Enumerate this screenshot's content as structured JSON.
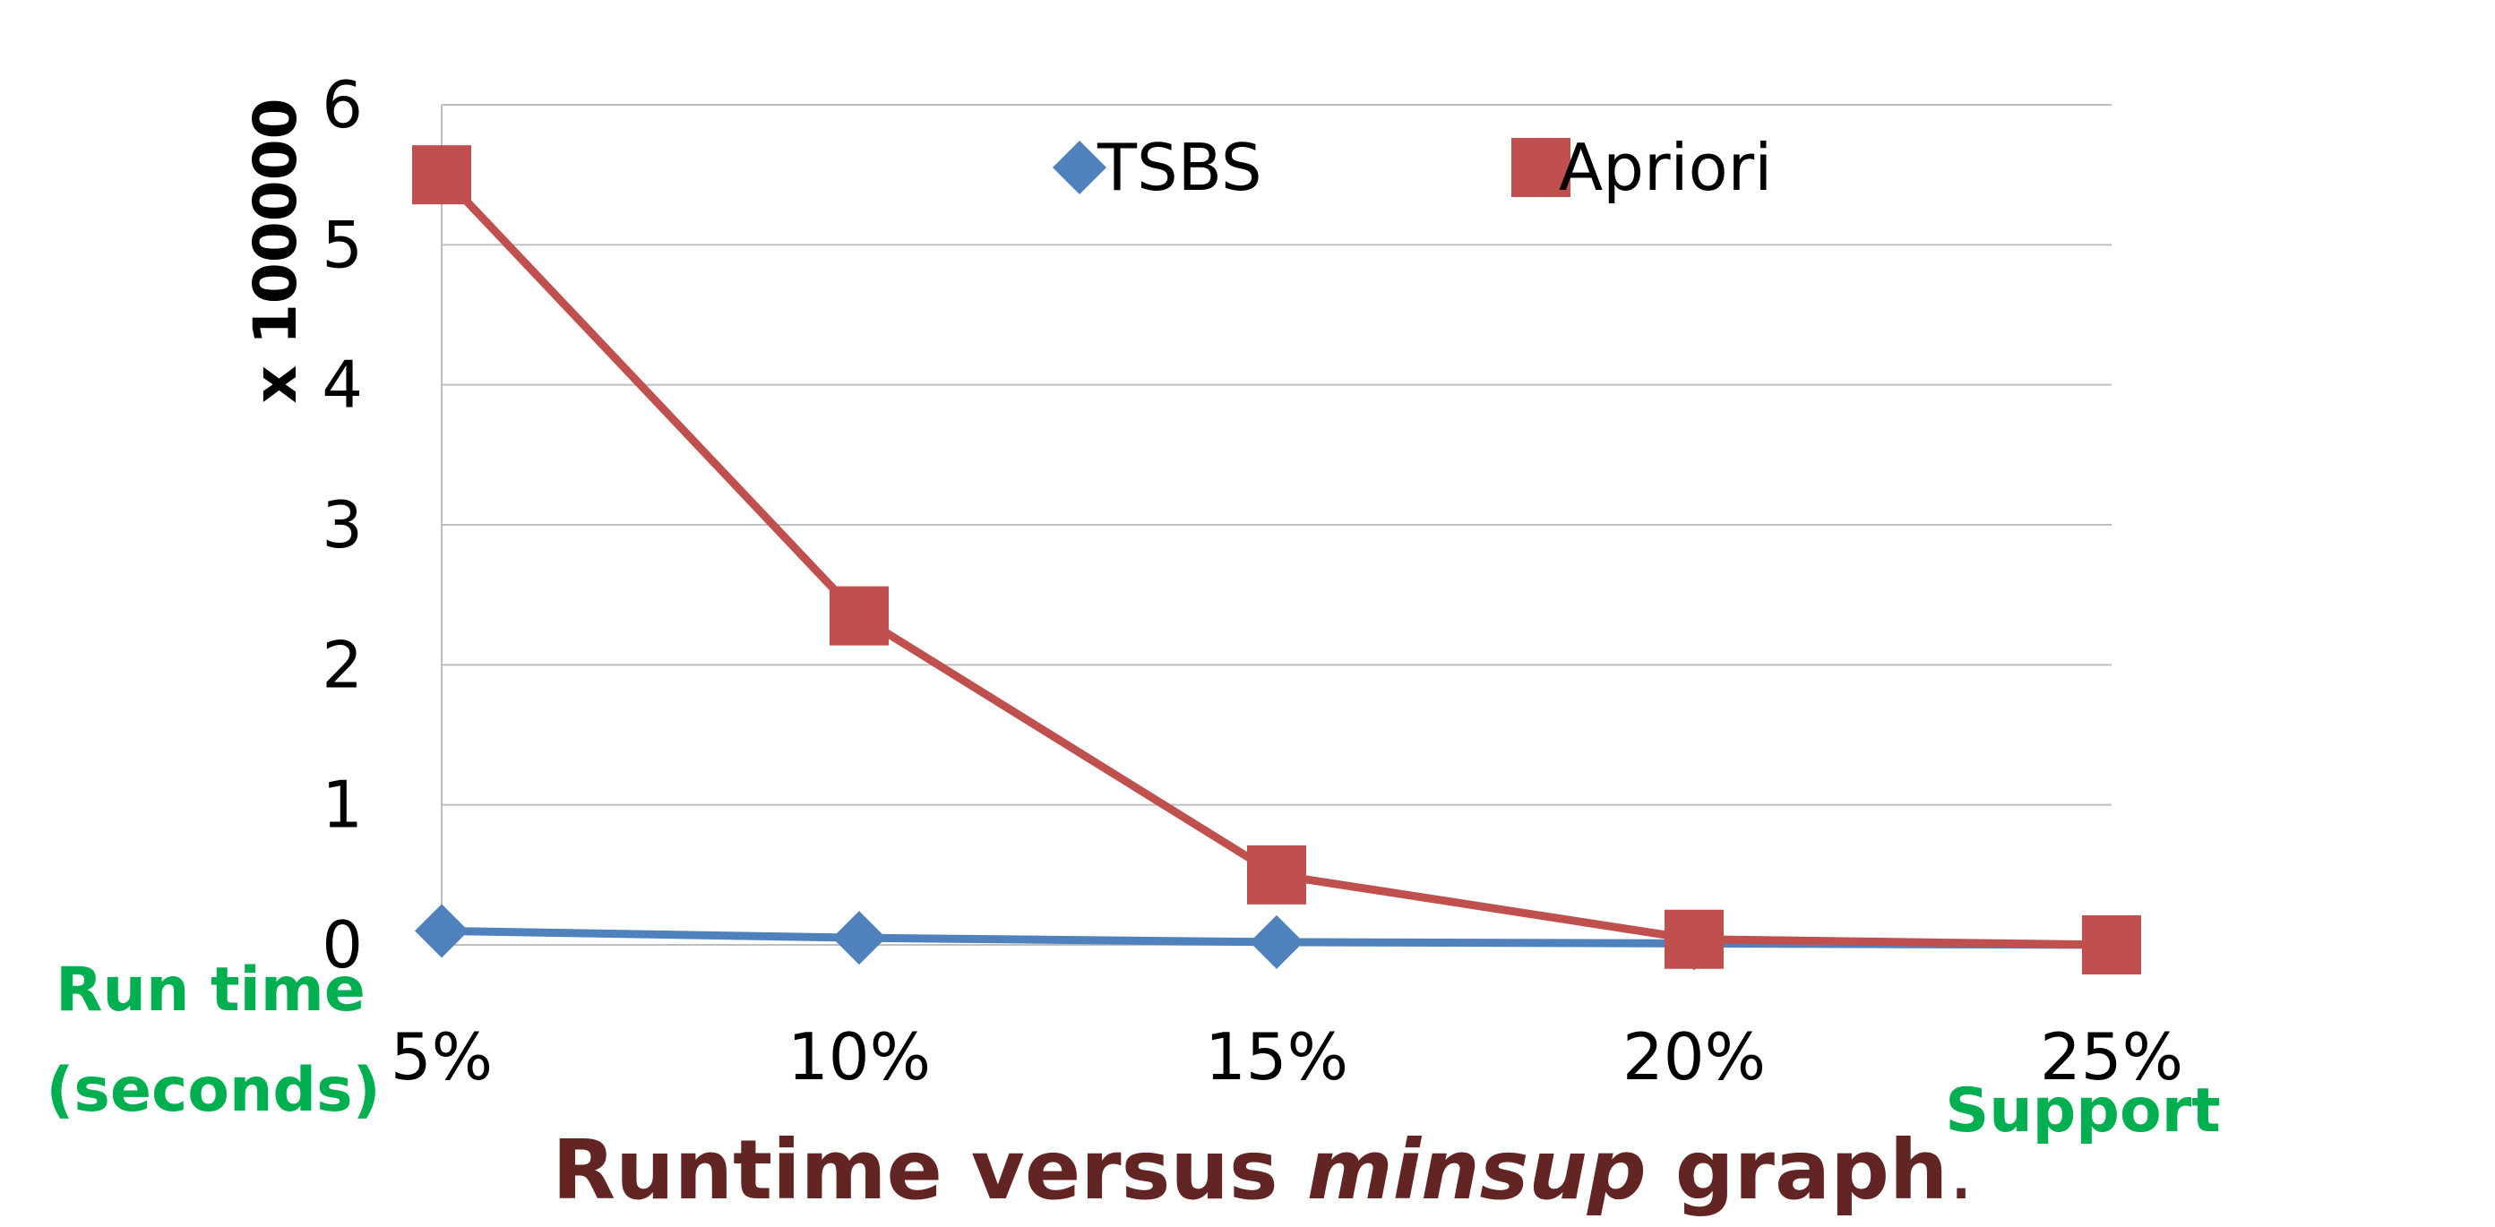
{
  "chart_data": {
    "type": "line",
    "categories": [
      "5%",
      "10%",
      "15%",
      "20%",
      "25%"
    ],
    "series": [
      {
        "name": "TSBS",
        "values": [
          0.1,
          0.05,
          0.02,
          0.01,
          0.0
        ],
        "color": "#4f81bd",
        "marker": "diamond"
      },
      {
        "name": "Apriori",
        "values": [
          5.5,
          2.35,
          0.5,
          0.04,
          0.0
        ],
        "color": "#c0504d",
        "marker": "square"
      }
    ],
    "ylim": [
      0,
      6
    ],
    "yticks": [
      "0",
      "1",
      "2",
      "3",
      "4",
      "5",
      "6"
    ],
    "y_multiplier_label": "x 100000",
    "ylabel": "Run time (seconds)",
    "ylabel_lines": [
      "Run time",
      "(seconds)"
    ],
    "xlabel": "Support",
    "grid": true,
    "legend_position": "top"
  },
  "caption": {
    "before": "Runtime versus ",
    "italic": "minsup",
    "after": " graph",
    "period": "."
  },
  "colors": {
    "axis_labels": "#00b050",
    "caption": "#632523",
    "grid": "#bfbfbf"
  }
}
